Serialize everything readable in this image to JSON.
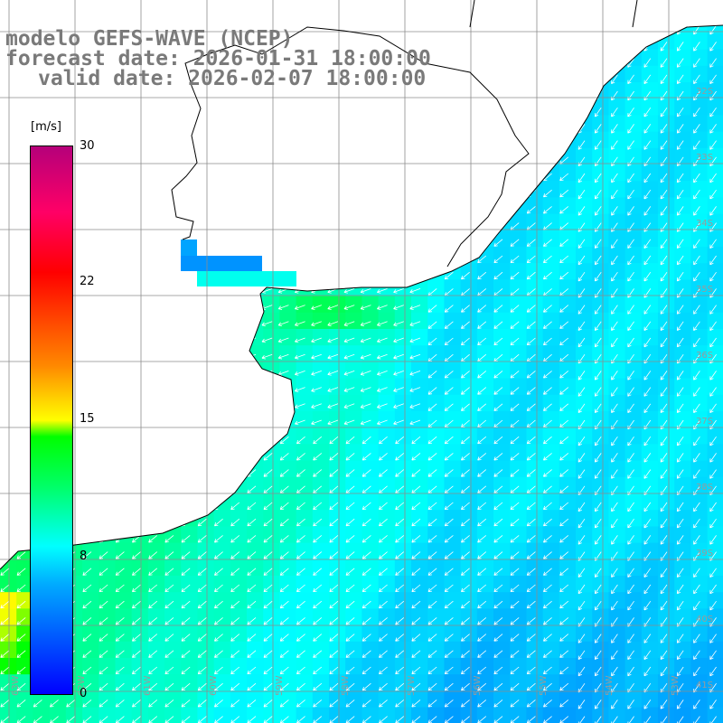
{
  "title": {
    "line1": "modelo GEFS-WAVE (NCEP)",
    "line2": "forecast date: 2026-01-31 18:00:00",
    "line3": "valid date: 2026-02-07 18:00:00"
  },
  "colorbar": {
    "unit": "[m/s]",
    "ticks": [
      {
        "value": 30,
        "label": "30"
      },
      {
        "value": 22,
        "label": "22"
      },
      {
        "value": 15,
        "label": "15"
      },
      {
        "value": 8,
        "label": "8"
      },
      {
        "value": 0,
        "label": "0"
      }
    ]
  },
  "map": {
    "variable": "wind speed",
    "lat_labels": [
      "32S",
      "33S",
      "34S",
      "35S",
      "36S",
      "37S",
      "38S",
      "39S",
      "40S",
      "41S"
    ],
    "lon_labels": [
      "63W",
      "62W",
      "61W",
      "60W",
      "59W",
      "58W",
      "57W",
      "56W",
      "55W",
      "54W",
      "53W"
    ],
    "colors": {
      "land": "#ffffff",
      "coast": "#000000",
      "grid": "#8c8c8c",
      "arrows": "#ffffff",
      "title_text": "#7a7a7a"
    }
  }
}
